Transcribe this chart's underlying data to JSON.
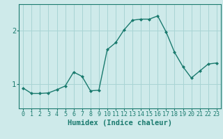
{
  "x": [
    0,
    1,
    2,
    3,
    4,
    5,
    6,
    7,
    8,
    9,
    10,
    11,
    12,
    13,
    14,
    15,
    16,
    17,
    18,
    19,
    20,
    21,
    22,
    23
  ],
  "y": [
    0.93,
    0.83,
    0.83,
    0.84,
    0.9,
    0.97,
    1.23,
    1.15,
    0.88,
    0.89,
    1.65,
    1.78,
    2.02,
    2.2,
    2.22,
    2.22,
    2.28,
    1.98,
    1.6,
    1.33,
    1.12,
    1.25,
    1.38,
    1.4
  ],
  "xlabel": "Humidex (Indice chaleur)",
  "yticks": [
    1,
    2
  ],
  "xticks": [
    0,
    1,
    2,
    3,
    4,
    5,
    6,
    7,
    8,
    9,
    10,
    11,
    12,
    13,
    14,
    15,
    16,
    17,
    18,
    19,
    20,
    21,
    22,
    23
  ],
  "line_color": "#1a7a6e",
  "marker": "D",
  "markersize": 2.0,
  "linewidth": 1.0,
  "bg_color": "#ceeaea",
  "grid_color": "#a8d4d4",
  "xlim": [
    -0.5,
    23.5
  ],
  "ylim": [
    0.55,
    2.5
  ],
  "xlabel_fontsize": 7.5,
  "tick_fontsize": 6.0,
  "ytick_fontsize": 7.5
}
